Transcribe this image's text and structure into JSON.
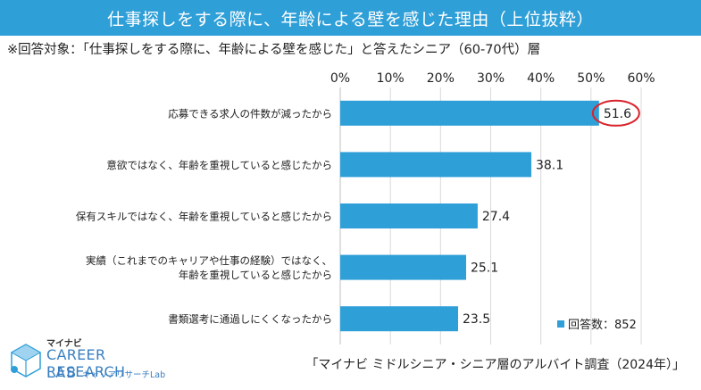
{
  "title": "仕事探しをする際に、年齢による壁を感じた理由（上位抜粋）",
  "subtitle": "※回答対象：「仕事探しをする際に、年齢による壁を感じた」と答えたシニア（60-70代）層",
  "source": "「マイナビ ミドルシニア・シニア層のアルバイト調査（2024年）」",
  "legend": {
    "label": "回答数：852"
  },
  "logo": {
    "brand": "マイナビ",
    "line1": "CAREER RESEARCH",
    "line2": "LAB",
    "line2_sub": "キャリアリサーチLab"
  },
  "colors": {
    "header": "#2f9fd8",
    "bar": "#2f9fd8",
    "highlight": "#d9232d"
  },
  "chart_data": {
    "type": "bar",
    "orientation": "horizontal",
    "xlim": [
      0,
      60
    ],
    "x_ticks": [
      "0%",
      "10%",
      "20%",
      "30%",
      "40%",
      "50%",
      "60%"
    ],
    "grid": true,
    "highlighted_category_index": 0,
    "categories": [
      [
        "応募できる求人の件数が減ったから"
      ],
      [
        "意欲ではなく、年齢を重視していると感じたから"
      ],
      [
        "保有スキルではなく、年齢を重視していると感じたから"
      ],
      [
        "実績（これまでのキャリアや仕事の経験）ではなく、",
        "年齢を重視していると感じたから"
      ],
      [
        "書類選考に通過しにくくなったから"
      ]
    ],
    "values": [
      51.6,
      38.1,
      27.4,
      25.1,
      23.5
    ],
    "value_labels": [
      "51.6",
      "38.1",
      "27.4",
      "25.1",
      "23.5"
    ]
  }
}
